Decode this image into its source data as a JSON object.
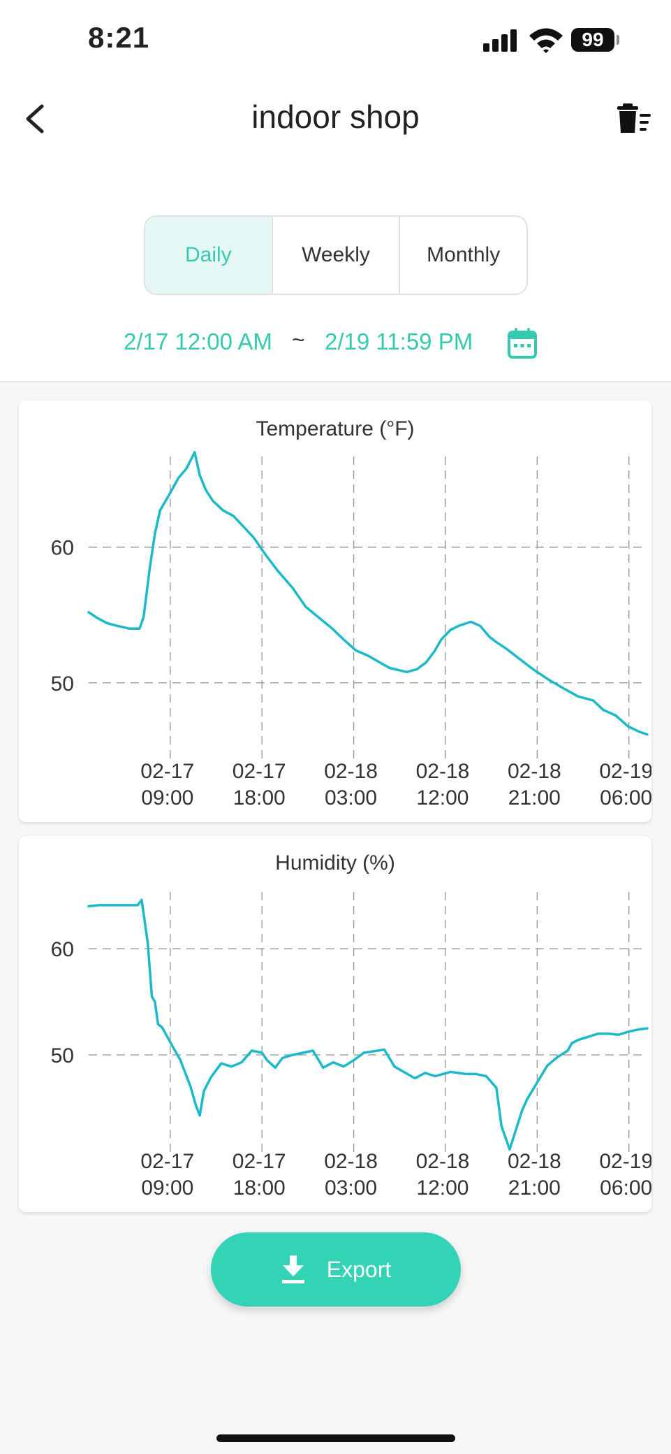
{
  "status": {
    "time": "8:21",
    "battery": "99"
  },
  "header": {
    "title": "indoor shop"
  },
  "tabs": [
    {
      "label": "Daily",
      "active": true
    },
    {
      "label": "Weekly",
      "active": false
    },
    {
      "label": "Monthly",
      "active": false
    }
  ],
  "range": {
    "start": "2/17 12:00 AM",
    "separator": "~",
    "end": "2/19 11:59 PM"
  },
  "export_label": "Export",
  "colors": {
    "accent": "#33d3b5",
    "line": "#1cb9c8"
  },
  "chart_data": [
    {
      "type": "line",
      "title": "Temperature (°F)",
      "x_ticks": [
        "02-17 09:00",
        "02-17 18:00",
        "02-18 03:00",
        "02-18 12:00",
        "02-18 21:00",
        "02-19 06:00"
      ],
      "y_ticks": [
        50,
        60
      ],
      "ylim": [
        43.5,
        67.2
      ],
      "xlim_hours": [
        1,
        55.8
      ],
      "grid": true,
      "series": [
        {
          "points": [
            [
              1,
              55.2
            ],
            [
              1.8,
              54.8
            ],
            [
              2.8,
              54.4
            ],
            [
              3.8,
              54.2
            ],
            [
              5,
              54
            ],
            [
              6,
              54
            ],
            [
              6.4,
              54.9
            ],
            [
              7,
              58.5
            ],
            [
              7.5,
              61
            ],
            [
              8,
              62.7
            ],
            [
              9,
              64
            ],
            [
              9.8,
              65.1
            ],
            [
              10.6,
              65.8
            ],
            [
              11.4,
              67
            ],
            [
              11.9,
              65.3
            ],
            [
              12.5,
              64.2
            ],
            [
              13.2,
              63.4
            ],
            [
              14.2,
              62.7
            ],
            [
              15.2,
              62.3
            ],
            [
              16.2,
              61.5
            ],
            [
              17.2,
              60.7
            ],
            [
              18.2,
              59.6
            ],
            [
              19.5,
              58.3
            ],
            [
              21,
              57
            ],
            [
              22.3,
              55.6
            ],
            [
              23.6,
              54.8
            ],
            [
              24.9,
              54
            ],
            [
              26,
              53.2
            ],
            [
              27.2,
              52.4
            ],
            [
              28.4,
              52
            ],
            [
              30.5,
              51.1
            ],
            [
              32.2,
              50.8
            ],
            [
              33.2,
              51
            ],
            [
              34.1,
              51.5
            ],
            [
              34.9,
              52.3
            ],
            [
              35.6,
              53.2
            ],
            [
              36.5,
              53.9
            ],
            [
              37.3,
              54.2
            ],
            [
              38.5,
              54.5
            ],
            [
              39.4,
              54.2
            ],
            [
              40.3,
              53.4
            ],
            [
              41,
              53
            ],
            [
              42,
              52.5
            ],
            [
              43.2,
              51.8
            ],
            [
              44.6,
              51
            ],
            [
              46.2,
              50.2
            ],
            [
              47.8,
              49.5
            ],
            [
              49,
              49
            ],
            [
              50.5,
              48.7
            ],
            [
              51.5,
              48
            ],
            [
              52.7,
              47.6
            ],
            [
              53.9,
              46.8
            ],
            [
              55,
              46.4
            ],
            [
              55.8,
              46.2
            ]
          ]
        }
      ]
    },
    {
      "type": "line",
      "title": "Humidity (%)",
      "x_ticks": [
        "02-17 09:00",
        "02-17 18:00",
        "02-18 03:00",
        "02-18 12:00",
        "02-18 21:00",
        "02-19 06:00"
      ],
      "y_ticks": [
        50,
        60
      ],
      "ylim": [
        40,
        66
      ],
      "xlim_hours": [
        1,
        55.8
      ],
      "grid": true,
      "series": [
        {
          "points": [
            [
              1,
              64
            ],
            [
              2,
              64.1
            ],
            [
              5,
              64.1
            ],
            [
              5.8,
              64.1
            ],
            [
              6.2,
              64.6
            ],
            [
              6.8,
              60.5
            ],
            [
              7.2,
              55.5
            ],
            [
              7.5,
              55
            ],
            [
              7.8,
              52.9
            ],
            [
              8.2,
              52.6
            ],
            [
              9,
              51.2
            ],
            [
              10,
              49.5
            ],
            [
              11,
              47
            ],
            [
              11.5,
              45.3
            ],
            [
              11.9,
              44.3
            ],
            [
              12.3,
              46.6
            ],
            [
              13,
              47.9
            ],
            [
              14,
              49.2
            ],
            [
              15,
              48.9
            ],
            [
              16,
              49.3
            ],
            [
              17,
              50.4
            ],
            [
              18,
              50.2
            ],
            [
              18.5,
              49.5
            ],
            [
              19.3,
              48.8
            ],
            [
              20,
              49.7
            ],
            [
              21,
              50
            ],
            [
              23,
              50.4
            ],
            [
              24,
              48.8
            ],
            [
              25,
              49.3
            ],
            [
              26,
              48.9
            ],
            [
              27,
              49.5
            ],
            [
              28,
              50.2
            ],
            [
              30,
              50.5
            ],
            [
              31,
              48.9
            ],
            [
              33,
              47.8
            ],
            [
              34,
              48.3
            ],
            [
              35,
              48
            ],
            [
              36.5,
              48.4
            ],
            [
              38,
              48.2
            ],
            [
              39,
              48.2
            ],
            [
              40,
              48
            ],
            [
              41,
              46.9
            ],
            [
              41.5,
              43.3
            ],
            [
              42.3,
              41.1
            ],
            [
              43.5,
              44.7
            ],
            [
              44,
              45.8
            ],
            [
              45,
              47.4
            ],
            [
              46,
              49
            ],
            [
              47,
              49.8
            ],
            [
              48,
              50.4
            ],
            [
              48.4,
              51.1
            ],
            [
              49,
              51.4
            ],
            [
              50,
              51.7
            ],
            [
              51,
              52
            ],
            [
              52,
              52
            ],
            [
              53,
              51.9
            ],
            [
              54,
              52.2
            ],
            [
              55,
              52.4
            ],
            [
              55.8,
              52.5
            ]
          ]
        }
      ]
    }
  ]
}
